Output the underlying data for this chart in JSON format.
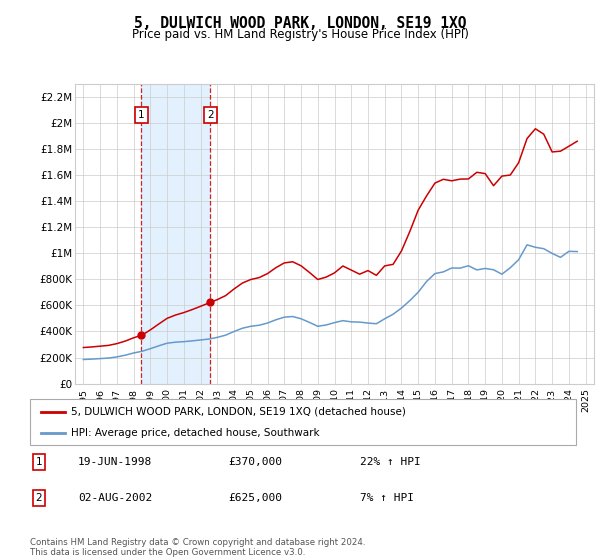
{
  "title": "5, DULWICH WOOD PARK, LONDON, SE19 1XQ",
  "subtitle": "Price paid vs. HM Land Registry's House Price Index (HPI)",
  "legend_line1": "5, DULWICH WOOD PARK, LONDON, SE19 1XQ (detached house)",
  "legend_line2": "HPI: Average price, detached house, Southwark",
  "footnote": "Contains HM Land Registry data © Crown copyright and database right 2024.\nThis data is licensed under the Open Government Licence v3.0.",
  "table_rows": [
    {
      "num": "1",
      "date": "19-JUN-1998",
      "price": "£370,000",
      "hpi": "22% ↑ HPI"
    },
    {
      "num": "2",
      "date": "02-AUG-2002",
      "price": "£625,000",
      "hpi": "7% ↑ HPI"
    }
  ],
  "sale1_year": 1998.47,
  "sale1_price": 370000,
  "sale2_year": 2002.58,
  "sale2_price": 625000,
  "red_line_color": "#cc0000",
  "blue_line_color": "#6699cc",
  "shade_color": "#ddeeff",
  "grid_color": "#cccccc",
  "background_color": "#ffffff",
  "ylim_min": 0,
  "ylim_max": 2300000,
  "years_hpi": [
    1995.0,
    1995.5,
    1996.0,
    1996.5,
    1997.0,
    1997.5,
    1998.0,
    1998.5,
    1999.0,
    1999.5,
    2000.0,
    2000.5,
    2001.0,
    2001.5,
    2002.0,
    2002.5,
    2003.0,
    2003.5,
    2004.0,
    2004.5,
    2005.0,
    2005.5,
    2006.0,
    2006.5,
    2007.0,
    2007.5,
    2008.0,
    2008.5,
    2009.0,
    2009.5,
    2010.0,
    2010.5,
    2011.0,
    2011.5,
    2012.0,
    2012.5,
    2013.0,
    2013.5,
    2014.0,
    2014.5,
    2015.0,
    2015.5,
    2016.0,
    2016.5,
    2017.0,
    2017.5,
    2018.0,
    2018.5,
    2019.0,
    2019.5,
    2020.0,
    2020.5,
    2021.0,
    2021.5,
    2022.0,
    2022.5,
    2023.0,
    2023.5,
    2024.0,
    2024.5
  ],
  "hpi_values": [
    185000,
    188000,
    192000,
    196000,
    205000,
    218000,
    235000,
    248000,
    268000,
    290000,
    310000,
    318000,
    322000,
    328000,
    335000,
    342000,
    355000,
    372000,
    400000,
    425000,
    440000,
    448000,
    465000,
    490000,
    510000,
    515000,
    498000,
    470000,
    440000,
    450000,
    468000,
    475000,
    480000,
    475000,
    468000,
    472000,
    495000,
    530000,
    580000,
    640000,
    720000,
    790000,
    850000,
    870000,
    890000,
    880000,
    875000,
    870000,
    880000,
    875000,
    870000,
    890000,
    950000,
    1020000,
    1050000,
    1030000,
    1000000,
    990000,
    995000,
    1000000
  ],
  "xlim_min": 1994.5,
  "xlim_max": 2025.5,
  "yticks": [
    0,
    200000,
    400000,
    600000,
    800000,
    1000000,
    1200000,
    1400000,
    1600000,
    1800000,
    2000000,
    2200000
  ],
  "xticks": [
    1995,
    1996,
    1997,
    1998,
    1999,
    2000,
    2001,
    2002,
    2003,
    2004,
    2005,
    2006,
    2007,
    2008,
    2009,
    2010,
    2011,
    2012,
    2013,
    2014,
    2015,
    2016,
    2017,
    2018,
    2019,
    2020,
    2021,
    2022,
    2023,
    2024,
    2025
  ]
}
